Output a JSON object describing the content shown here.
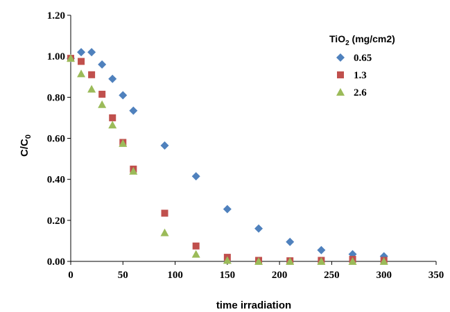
{
  "chart_data": {
    "type": "scatter",
    "xlabel": "time irradiation",
    "ylabel": "C/C",
    "ylabel_sub": "0",
    "xlim": [
      0,
      350
    ],
    "ylim": [
      0,
      1.2
    ],
    "xticks": [
      0,
      50,
      100,
      150,
      200,
      250,
      300,
      350
    ],
    "yticks": [
      "0.00",
      "0.20",
      "0.40",
      "0.60",
      "0.80",
      "1.00",
      "1.20"
    ],
    "grid": false,
    "legend": {
      "placement": "top-right",
      "title_prefix": "TiO",
      "title_sub": "2",
      "title_suffix": " (mg/cm2)"
    },
    "series": [
      {
        "name": "0.65",
        "marker": "diamond",
        "color": "#4f81bd",
        "x": [
          0,
          10,
          20,
          30,
          40,
          50,
          60,
          90,
          120,
          150,
          180,
          210,
          240,
          270,
          300
        ],
        "y": [
          0.99,
          1.02,
          1.02,
          0.96,
          0.89,
          0.81,
          0.735,
          0.565,
          0.415,
          0.255,
          0.16,
          0.095,
          0.055,
          0.035,
          0.025
        ]
      },
      {
        "name": "1.3",
        "marker": "square",
        "color": "#c0504d",
        "x": [
          0,
          10,
          20,
          30,
          40,
          50,
          60,
          90,
          120,
          150,
          180,
          210,
          240,
          270,
          300
        ],
        "y": [
          0.99,
          0.975,
          0.91,
          0.815,
          0.7,
          0.58,
          0.45,
          0.235,
          0.075,
          0.02,
          0.005,
          0.003,
          0.005,
          0.01,
          0.005
        ]
      },
      {
        "name": "2.6",
        "marker": "triangle",
        "color": "#9bbb59",
        "x": [
          0,
          10,
          20,
          30,
          40,
          50,
          60,
          90,
          120,
          150,
          180,
          210,
          240,
          270,
          300
        ],
        "y": [
          0.99,
          0.915,
          0.84,
          0.765,
          0.665,
          0.575,
          0.44,
          0.14,
          0.035,
          0.005,
          0.0,
          0.0,
          0.0,
          0.0,
          0.0
        ]
      }
    ]
  }
}
